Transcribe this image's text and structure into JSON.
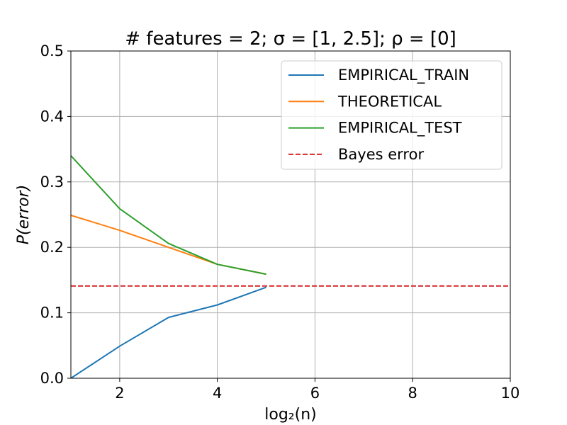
{
  "chart_data": {
    "type": "line",
    "title": "# features = 2;  σ = [1, 2.5];  ρ = [0]",
    "xlabel": "log₂(n)",
    "ylabel": "P(error)",
    "xlim": [
      1,
      10
    ],
    "ylim": [
      0,
      0.5
    ],
    "xticks": [
      "2",
      "4",
      "6",
      "8",
      "10"
    ],
    "yticks": [
      "0.0",
      "0.1",
      "0.2",
      "0.3",
      "0.4",
      "0.5"
    ],
    "grid": true,
    "legend_position": "top-right",
    "series": [
      {
        "name": "EMPIRICAL_TRAIN",
        "color": "#1f77b4",
        "style": "solid",
        "x": [
          1,
          2,
          3,
          4,
          5
        ],
        "y": [
          0.0,
          0.049,
          0.093,
          0.112,
          0.139
        ]
      },
      {
        "name": "THEORETICAL",
        "color": "#ff7f0e",
        "style": "solid",
        "x": [
          1,
          2,
          3,
          4,
          5
        ],
        "y": [
          0.249,
          0.226,
          0.2,
          0.174,
          0.159
        ]
      },
      {
        "name": "EMPIRICAL_TEST",
        "color": "#2ca02c",
        "style": "solid",
        "x": [
          1,
          2,
          3,
          4,
          5
        ],
        "y": [
          0.34,
          0.259,
          0.206,
          0.174,
          0.159
        ]
      },
      {
        "name": "Bayes error",
        "color": "#d62728",
        "style": "dashed",
        "x": [
          1,
          10
        ],
        "y": [
          0.141,
          0.141
        ]
      }
    ]
  }
}
